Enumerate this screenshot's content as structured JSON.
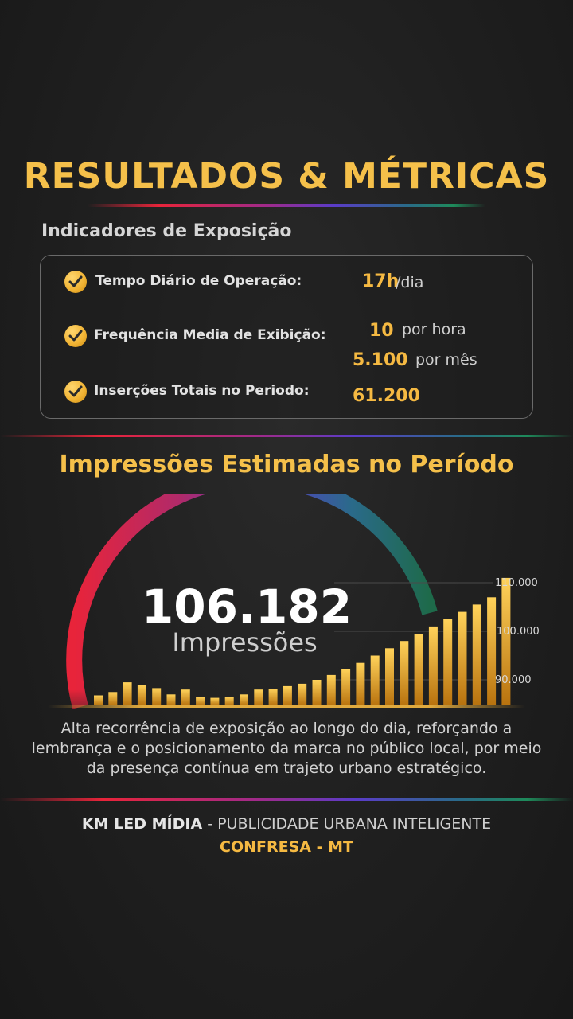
{
  "header": {
    "title": "RESULTADOS & MÉTRICAS",
    "subtitle": "Indicadores de Exposição"
  },
  "metrics": [
    {
      "label": "Tempo Diário de Operação:",
      "value": "17h",
      "unit": "/dia",
      "icon": "check-icon"
    },
    {
      "label": "Frequência Media de Exibição:",
      "value": "10",
      "unit": "por hora",
      "value2": "5.100",
      "unit2": "por mês",
      "icon": "check-icon"
    },
    {
      "label": "Inserções Totais no Periodo:",
      "value": "61.200",
      "icon": "check-icon"
    }
  ],
  "impressions": {
    "section_title": "Impressões Estimadas no Período",
    "total": "106.182",
    "total_label": "Impressões"
  },
  "chart_data": {
    "type": "bar",
    "y_tick_labels": [
      "110.000",
      "100.000",
      "90.000"
    ],
    "ylim": [
      84000,
      112000
    ],
    "grid": true,
    "values": [
      86800,
      87500,
      89500,
      89000,
      88300,
      87000,
      88000,
      86500,
      86300,
      86500,
      87000,
      88000,
      88200,
      88700,
      89200,
      90000,
      91000,
      92300,
      93500,
      95000,
      96500,
      98000,
      99500,
      101000,
      102500,
      104000,
      105500,
      107000,
      111000
    ],
    "colors": {
      "bar_top": "#ffd15a",
      "bar_bottom": "#c07a10",
      "arc": [
        "#e8243a",
        "#a02a8a",
        "#5a3cc8",
        "#2a7a8a",
        "#1e8a5a"
      ]
    }
  },
  "description": "Alta recorrência de exposição ao longo do dia, reforçando a lembrança e o posicionamento da marca no público local, por meio da presença contínua em trajeto urbano estratégico.",
  "footer": {
    "brand": "KM LED MÍDIA",
    "tagline": " - PUBLICIDADE URBANA INTELIGENTE",
    "location": "CONFRESA - MT"
  }
}
